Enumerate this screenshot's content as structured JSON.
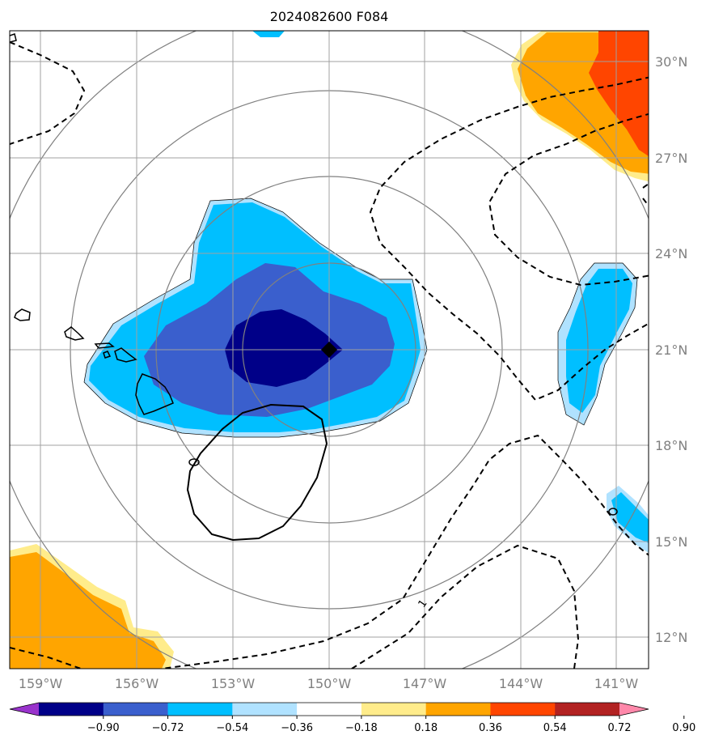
{
  "title": "2024082600 F084",
  "longitude_labels": [
    "159°W",
    "156°W",
    "153°W",
    "150°W",
    "147°W",
    "144°W",
    "141°W"
  ],
  "latitude_labels": [
    "30°N",
    "27°N",
    "24°N",
    "21°N",
    "18°N",
    "15°N",
    "12°N"
  ],
  "colorbar": {
    "tick_labels": [
      "−0.90",
      "−0.72",
      "−0.54",
      "−0.36",
      "−0.18",
      "0.18",
      "0.36",
      "0.54",
      "0.72",
      "0.90"
    ],
    "colors": [
      "#9933cc",
      "#000088",
      "#3a5fcd",
      "#00bfff",
      "#b0e2ff",
      "#ffffff",
      "#ffec8b",
      "#ffa500",
      "#ff4500",
      "#b22222",
      "#ff88aa"
    ]
  },
  "contour_label": "1",
  "center_marker": "storm-center"
}
